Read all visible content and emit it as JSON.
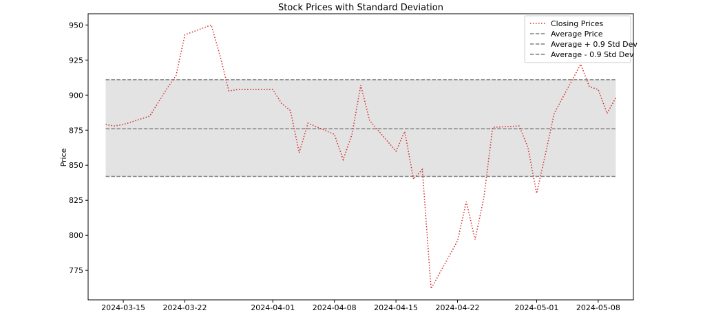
{
  "chart_data": {
    "type": "line",
    "title": "Stock Prices with Standard Deviation",
    "xlabel": "",
    "ylabel": "Price",
    "x_ticks": [
      "2024-03-15",
      "2024-03-22",
      "2024-04-01",
      "2024-04-08",
      "2024-04-15",
      "2024-04-22",
      "2024-05-01",
      "2024-05-08"
    ],
    "y_ticks": [
      775,
      800,
      825,
      850,
      875,
      900,
      925,
      950
    ],
    "xlim": [
      "2024-03-11",
      "2024-05-12"
    ],
    "ylim": [
      754,
      958
    ],
    "grid": false,
    "legend_position": "top-right",
    "band": {
      "lower": 842,
      "upper": 911,
      "color": "#e3e3e3"
    },
    "series": [
      {
        "name": "Closing Prices",
        "style": "dotted",
        "color": "#d62728",
        "x": [
          "2024-03-13",
          "2024-03-14",
          "2024-03-15",
          "2024-03-18",
          "2024-03-19",
          "2024-03-20",
          "2024-03-21",
          "2024-03-22",
          "2024-03-25",
          "2024-03-26",
          "2024-03-27",
          "2024-03-28",
          "2024-03-29",
          "2024-04-01",
          "2024-04-02",
          "2024-04-03",
          "2024-04-04",
          "2024-04-05",
          "2024-04-08",
          "2024-04-09",
          "2024-04-10",
          "2024-04-11",
          "2024-04-12",
          "2024-04-15",
          "2024-04-16",
          "2024-04-17",
          "2024-04-18",
          "2024-04-19",
          "2024-04-22",
          "2024-04-23",
          "2024-04-24",
          "2024-04-25",
          "2024-04-26",
          "2024-04-29",
          "2024-04-30",
          "2024-05-01",
          "2024-05-02",
          "2024-05-03",
          "2024-05-06",
          "2024-05-07",
          "2024-05-08",
          "2024-05-09",
          "2024-05-10"
        ],
        "values": [
          879,
          878,
          879,
          885,
          895,
          905,
          914,
          943,
          950,
          928,
          903,
          904,
          904,
          904,
          894,
          889,
          859,
          880,
          872,
          854,
          872,
          907,
          882,
          860,
          874,
          840,
          847,
          762,
          796,
          824,
          797,
          827,
          877,
          878,
          863,
          830,
          858,
          887,
          922,
          906,
          904,
          887,
          898
        ]
      },
      {
        "name": "Average Price",
        "style": "dashed",
        "color": "#808080",
        "y": 876
      },
      {
        "name": "Average + 0.9 Std Dev",
        "style": "dashed",
        "color": "#808080",
        "y": 911
      },
      {
        "name": "Average - 0.9 Std Dev",
        "style": "dashed",
        "color": "#808080",
        "y": 842
      }
    ]
  }
}
